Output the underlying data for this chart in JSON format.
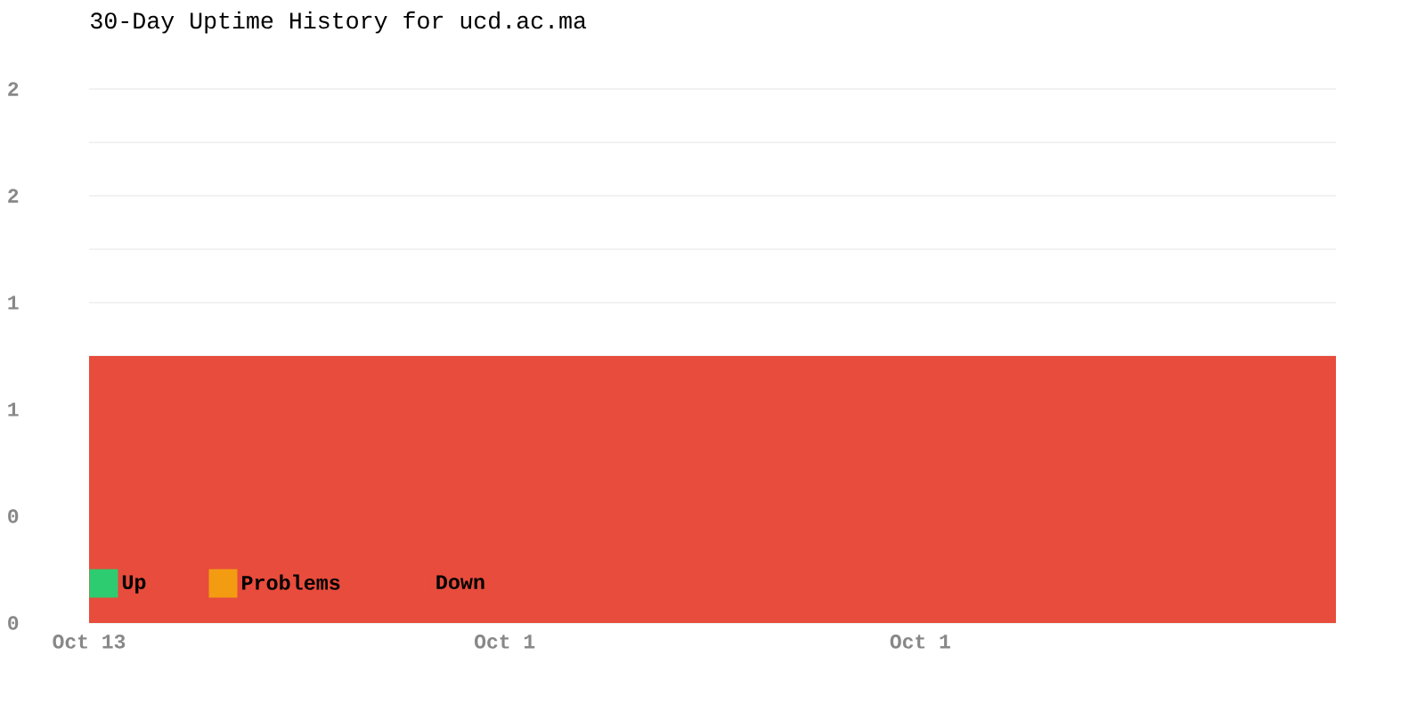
{
  "chart_data": {
    "type": "area",
    "title": "30-Day Uptime History for ucd.ac.ma",
    "categories": [
      "Oct 13",
      null,
      null,
      null,
      null,
      null,
      null,
      null,
      null,
      null,
      "Oct 1",
      null,
      null,
      null,
      null,
      null,
      null,
      null,
      null,
      null,
      "Oct 1",
      null,
      null,
      null,
      null,
      null,
      null,
      null,
      null,
      null,
      null
    ],
    "ylim": [
      0,
      2
    ],
    "yticks": [
      0,
      {
        "value": 0.2,
        "label": null
      },
      {
        "value": 0.4,
        "label": "0"
      },
      {
        "value": 0.6,
        "label": null
      },
      {
        "value": 0.8,
        "label": "1"
      },
      {
        "value": 1,
        "label": null
      },
      {
        "value": 1.2,
        "label": "1"
      },
      {
        "value": 1.4,
        "label": null
      },
      {
        "value": 1.6,
        "label": "2"
      },
      {
        "value": 1.8,
        "label": null
      },
      2
    ],
    "grid": "y",
    "legend": "bottom left",
    "series": [
      {
        "name": "Up",
        "color": "#2ecc71",
        "values": [
          null,
          null,
          null,
          null,
          null,
          null,
          null,
          null,
          null,
          null,
          null,
          null,
          null,
          null,
          null,
          null,
          null,
          null,
          null,
          null,
          null,
          null,
          null,
          null,
          null,
          null,
          null,
          null,
          null,
          null,
          null
        ]
      },
      {
        "name": "Problems",
        "color": "#f39c12",
        "values": [
          null,
          null,
          null,
          null,
          null,
          null,
          null,
          null,
          null,
          null,
          null,
          null,
          null,
          null,
          null,
          null,
          null,
          null,
          null,
          null,
          null,
          null,
          null,
          null,
          null,
          null,
          null,
          null,
          null,
          null,
          null
        ]
      },
      {
        "name": "Down",
        "color": "#e74c3c",
        "values": [
          1,
          1,
          1,
          1,
          1,
          1,
          1,
          1,
          1,
          1,
          1,
          1,
          1,
          1,
          1,
          1,
          1,
          1,
          1,
          1,
          1,
          1,
          1,
          1,
          1,
          1,
          1,
          1,
          1,
          1,
          1
        ]
      }
    ]
  }
}
